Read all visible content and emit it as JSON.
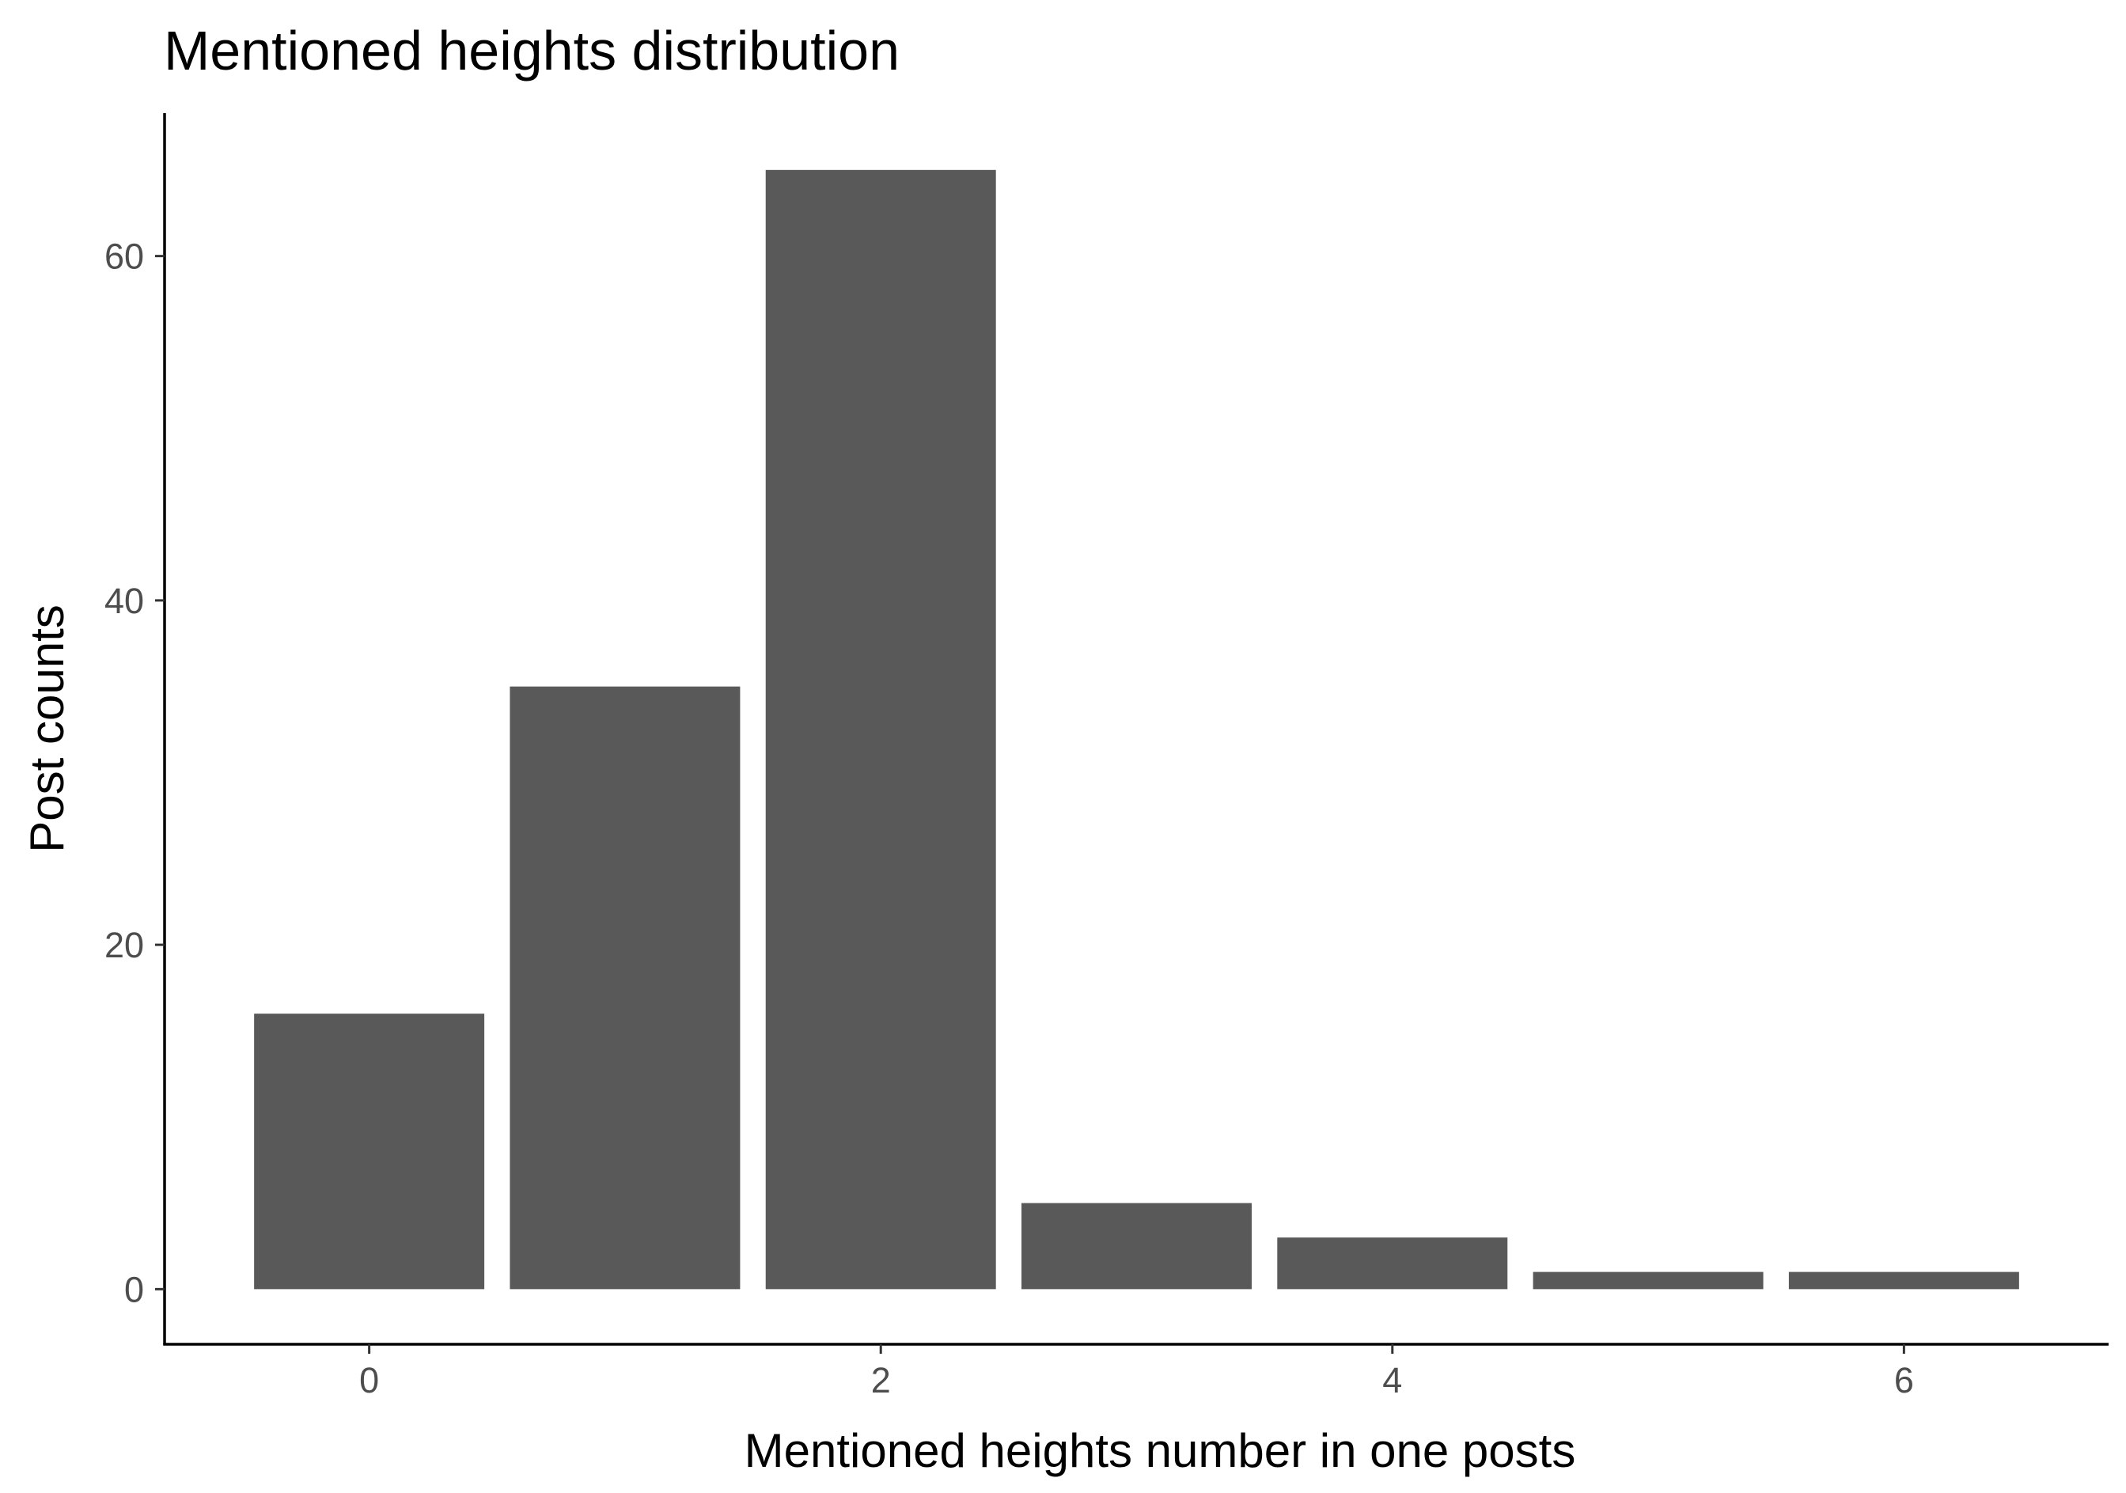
{
  "chart_data": {
    "type": "bar",
    "title": "Mentioned heights distribution",
    "xlabel": "Mentioned heights number in one posts",
    "ylabel": "Post counts",
    "x": [
      0,
      1,
      2,
      3,
      4,
      5,
      6
    ],
    "values": [
      16,
      35,
      65,
      5,
      3,
      1,
      1
    ],
    "xlim": [
      -0.8,
      6.8
    ],
    "ylim": [
      -3.2,
      68.3
    ],
    "xticks": [
      0,
      2,
      4,
      6
    ],
    "yticks": [
      0,
      20,
      40,
      60
    ],
    "xtick_labels": [
      "0",
      "2",
      "4",
      "6"
    ],
    "ytick_labels": [
      "0",
      "20",
      "40",
      "60"
    ],
    "grid": false,
    "legend": "none",
    "bar_color": "#595959"
  }
}
